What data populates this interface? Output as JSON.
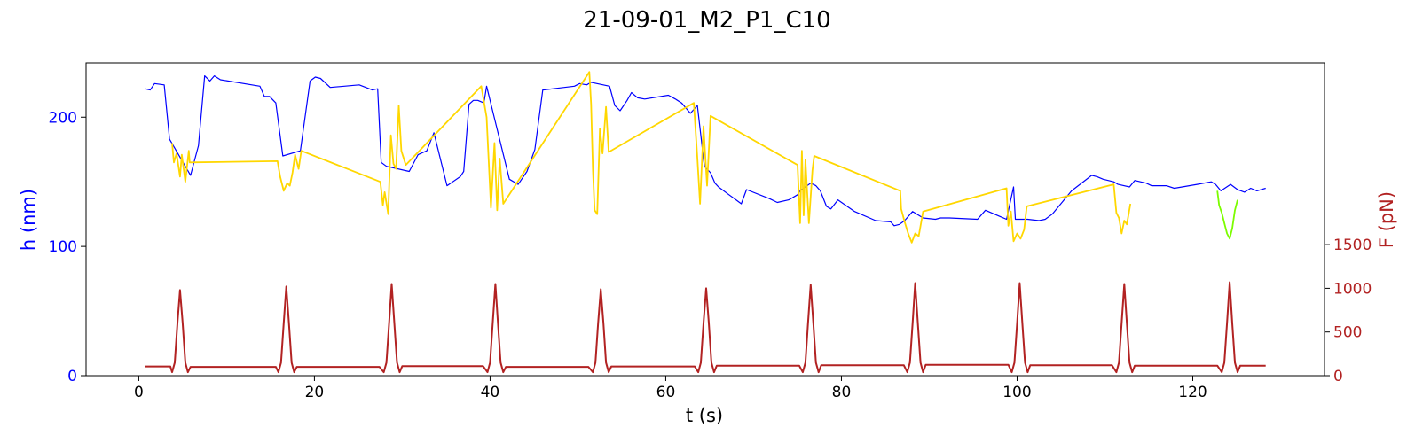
{
  "chart_data": {
    "type": "line",
    "title": "21-09-01_M2_P1_C10",
    "xlabel": "t (s)",
    "ylabel_left": "h (nm)",
    "ylabel_right": "F (pN)",
    "xlim": [
      -6,
      135
    ],
    "ylim_left": [
      0,
      242
    ],
    "ylim_right": [
      0,
      3580
    ],
    "xticks": [
      0,
      20,
      40,
      60,
      80,
      100,
      120
    ],
    "yticks_left": [
      0,
      100,
      200
    ],
    "yticks_right": [
      0,
      500,
      1000,
      1500
    ],
    "grid": false,
    "colors": {
      "h_main": "#0000ff",
      "h_compression": "#ffd700",
      "h_highlight": "#7cfc00",
      "force": "#b22222"
    },
    "series": [
      {
        "name": "",
        "axis": "left",
        "color_key": "h_main",
        "x": [
          0.7,
          1.3,
          1.8,
          2.9,
          3.5,
          5.9,
          6.8,
          7.5,
          8.1,
          8.6,
          9.3,
          13.8,
          14.3,
          14.9,
          15.6,
          16.4,
          18.4,
          19.5,
          20.1,
          20.7,
          21.8,
          25.1,
          26.6,
          27.2,
          27.6,
          28.2,
          30.8,
          31.8,
          32.8,
          33.6,
          35.1,
          36.6,
          37.0,
          37.6,
          38.1,
          38.6,
          39.3,
          39.6,
          42.2,
          43.2,
          44.2,
          45.1,
          46.0,
          49.6,
          50.2,
          51.0,
          51.5,
          53.6,
          54.2,
          54.8,
          55.6,
          56.1,
          56.8,
          57.6,
          60.3,
          61.1,
          61.8,
          62.8,
          63.6,
          64.4,
          65.1,
          65.6,
          66.0,
          67.2,
          68.0,
          68.6,
          69.2,
          71.8,
          72.7,
          74.0,
          75.0,
          75.3,
          76.5,
          77.1,
          77.6,
          78.3,
          78.8,
          79.6,
          81.5,
          83.9,
          85.6,
          86.0,
          86.6,
          87.2,
          88.1,
          89.3,
          90.7,
          91.3,
          92.3,
          95.5,
          96.4,
          98.1,
          98.8,
          99.6,
          99.8,
          101.2,
          102.5,
          103.2,
          104.0,
          106.2,
          108.5,
          109.1,
          109.8,
          111.0,
          111.5,
          112.8,
          113.4,
          114.7,
          115.3,
          117.0,
          117.9,
          120.5,
          122.1,
          122.6,
          123.2,
          124.3,
          125.1,
          125.9,
          126.6,
          127.3,
          128.3
        ],
        "y": [
          222,
          221,
          226,
          225,
          183,
          155,
          178,
          232,
          228,
          232,
          229,
          224,
          216,
          216,
          211,
          170,
          174,
          228,
          231,
          230,
          223,
          225,
          221,
          222,
          165,
          162,
          158,
          171,
          174,
          188,
          147,
          154,
          158,
          210,
          213,
          213,
          211,
          224,
          152,
          148,
          158,
          175,
          221,
          224,
          226,
          225,
          227,
          224,
          209,
          205,
          213,
          219,
          215,
          214,
          217,
          214,
          211,
          203,
          209,
          162,
          157,
          149,
          146,
          140,
          136,
          133,
          144,
          137,
          134,
          136,
          140,
          143,
          149,
          147,
          143,
          131,
          129,
          136,
          127,
          120,
          119,
          116,
          117,
          120,
          127,
          122,
          121,
          122,
          122,
          121,
          128,
          123,
          121,
          146,
          121,
          121,
          120,
          121,
          125,
          143,
          155,
          154,
          152,
          150,
          148,
          146,
          151,
          149,
          147,
          147,
          145,
          148,
          150,
          148,
          143,
          148,
          144,
          142,
          145,
          143,
          145
        ]
      },
      {
        "name": "",
        "axis": "left",
        "color_key": "h_compression",
        "x": [
          3.8,
          4.0,
          4.3,
          4.7,
          4.9,
          5.3,
          5.7,
          5.8,
          15.8,
          16.1,
          16.5,
          16.9,
          17.2,
          17.5,
          17.8,
          18.2,
          18.5,
          27.5,
          27.8,
          28.0,
          28.4,
          28.7,
          29.0,
          29.3,
          29.6,
          29.9,
          30.4,
          39.0,
          39.6,
          40.1,
          40.5,
          40.8,
          41.1,
          41.5,
          51.3,
          51.5,
          51.7,
          51.9,
          52.2,
          52.5,
          52.8,
          53.2,
          53.5,
          63.2,
          63.6,
          63.9,
          64.3,
          64.7,
          65.1,
          75.0,
          75.3,
          75.5,
          75.7,
          75.9,
          76.3,
          76.7,
          76.9,
          86.7,
          86.8,
          87.2,
          87.6,
          88.0,
          88.4,
          88.8,
          89.3,
          98.8,
          99.0,
          99.3,
          99.6,
          100.0,
          100.4,
          100.8,
          101.1,
          111.0,
          111.3,
          111.6,
          111.9,
          112.2,
          112.5,
          112.9
        ],
        "y": [
          180,
          165,
          172,
          154,
          171,
          150,
          174,
          165,
          166,
          154,
          143,
          149,
          147,
          157,
          171,
          160,
          174,
          150,
          132,
          142,
          125,
          186,
          164,
          160,
          209,
          174,
          163,
          224,
          200,
          130,
          180,
          128,
          168,
          133,
          235,
          210,
          160,
          128,
          125,
          191,
          172,
          208,
          173,
          211,
          168,
          133,
          193,
          147,
          201,
          163,
          118,
          174,
          124,
          167,
          118,
          159,
          170,
          143,
          129,
          119,
          110,
          103,
          110,
          108,
          127,
          145,
          116,
          127,
          104,
          110,
          106,
          113,
          131,
          148,
          126,
          122,
          110,
          120,
          117,
          133
        ],
        "y_detail": "dense noisy segments during each indentation pulse"
      },
      {
        "name": "",
        "axis": "left",
        "color_key": "h_highlight",
        "x": [
          122.8,
          123.0,
          123.3,
          123.6,
          123.9,
          124.2,
          124.5,
          124.8,
          125.1
        ],
        "y": [
          143,
          132,
          126,
          118,
          110,
          106,
          114,
          128,
          136
        ]
      },
      {
        "name": "",
        "axis": "right",
        "color_key": "force",
        "pulse_times": [
          4.7,
          16.8,
          28.8,
          40.6,
          52.6,
          64.6,
          76.5,
          88.4,
          100.3,
          112.2,
          124.2
        ],
        "pulse_peaks": [
          980,
          1020,
          1050,
          1050,
          990,
          1000,
          1040,
          1060,
          1060,
          1050,
          1070
        ],
        "baseline_segments": [
          {
            "x": [
              0.7,
              3.6
            ],
            "y": 105
          },
          {
            "x": [
              6.0,
              15.6
            ],
            "y": 100
          },
          {
            "x": [
              18.0,
              27.4
            ],
            "y": 100
          },
          {
            "x": [
              30.0,
              39.2
            ],
            "y": 110
          },
          {
            "x": [
              41.9,
              51.2
            ],
            "y": 100
          },
          {
            "x": [
              53.8,
              63.3
            ],
            "y": 105
          },
          {
            "x": [
              65.8,
              75.2
            ],
            "y": 115
          },
          {
            "x": [
              77.7,
              87.1
            ],
            "y": 120
          },
          {
            "x": [
              89.6,
              99.0
            ],
            "y": 125
          },
          {
            "x": [
              101.5,
              110.8
            ],
            "y": 120
          },
          {
            "x": [
              113.4,
              122.8
            ],
            "y": 115
          },
          {
            "x": [
              125.4,
              128.3
            ],
            "y": 115
          }
        ]
      }
    ]
  }
}
